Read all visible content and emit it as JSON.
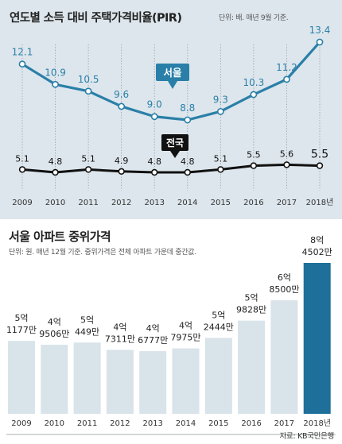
{
  "chart_data": [
    {
      "type": "line",
      "title": "연도별 소득 대비 주택가격비율(PIR)",
      "unit_note": "단위: 배. 매년 9월 기준.",
      "categories": [
        "2009",
        "2010",
        "2011",
        "2012",
        "2013",
        "2014",
        "2015",
        "2016",
        "2017",
        "2018년"
      ],
      "series": [
        {
          "name": "서울",
          "color": "#2a7fa8",
          "values": [
            12.1,
            10.9,
            10.5,
            9.6,
            9.0,
            8.8,
            9.3,
            10.3,
            11.2,
            13.4
          ],
          "labels": [
            "12.1",
            "10.9",
            "10.5",
            "9.6",
            "9.0",
            "8.8",
            "9.3",
            "10.3",
            "11.2",
            "13.4"
          ]
        },
        {
          "name": "전국",
          "color": "#111111",
          "values": [
            5.1,
            4.8,
            5.1,
            4.9,
            4.8,
            4.8,
            5.1,
            5.5,
            5.6,
            5.5
          ],
          "labels": [
            "5.1",
            "4.8",
            "5.1",
            "4.9",
            "4.8",
            "4.8",
            "5.1",
            "5.5",
            "5.6",
            "5.5"
          ]
        }
      ],
      "grid": "vertical dotted"
    },
    {
      "type": "bar",
      "title": "서울 아파트 중위가격",
      "unit_note": "단위: 원. 매년 12월 기준. 중위가격은 전체 아파트 가운데 중간값.",
      "categories": [
        "2009",
        "2010",
        "2011",
        "2012",
        "2013",
        "2014",
        "2015",
        "2016",
        "2017",
        "2018년"
      ],
      "values": [
        51177,
        49506,
        50449,
        47311,
        46777,
        47975,
        52444,
        59828,
        68500,
        84502
      ],
      "value_unit": "만원",
      "labels": [
        [
          "5억",
          "1177만"
        ],
        [
          "4억",
          "9506만"
        ],
        [
          "5억",
          "449만"
        ],
        [
          "4억",
          "7311만"
        ],
        [
          "4억",
          "6777만"
        ],
        [
          "4억",
          "7975만"
        ],
        [
          "5억",
          "2444만"
        ],
        [
          "5억",
          "9828만"
        ],
        [
          "6억",
          "8500만"
        ],
        [
          "8억",
          "4502만"
        ]
      ],
      "bar_color": "#d9e3ea",
      "highlight_color": "#1e6f99",
      "source": "자료: KB국민은행"
    }
  ]
}
